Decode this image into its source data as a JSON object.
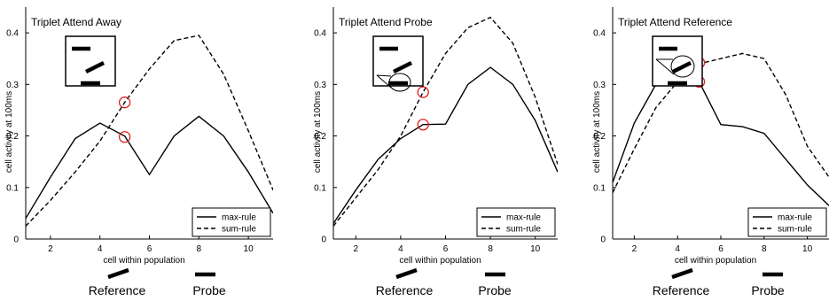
{
  "chart_data": [
    {
      "type": "line",
      "title": "Triplet Attend Away",
      "xlabel": "cell within population",
      "ylabel": "cell activity at 100ms",
      "xlim": [
        1,
        11
      ],
      "ylim": [
        0,
        0.45
      ],
      "x_ticks": [
        "2",
        "4",
        "6",
        "8",
        "10"
      ],
      "y_ticks": [
        "0",
        "0.1",
        "0.2",
        "0.3",
        "0.4"
      ],
      "legend_position": "bottom-right",
      "series": [
        {
          "name": "max-rule",
          "style": "solid",
          "x": [
            1,
            2,
            3,
            4,
            5,
            6,
            7,
            8,
            9,
            10,
            11
          ],
          "y": [
            0.04,
            0.12,
            0.195,
            0.225,
            0.2,
            0.125,
            0.2,
            0.238,
            0.2,
            0.13,
            0.05
          ]
        },
        {
          "name": "sum-rule",
          "style": "dashed",
          "x": [
            1,
            2,
            3,
            4,
            5,
            6,
            7,
            8,
            9,
            10,
            11
          ],
          "y": [
            0.025,
            0.075,
            0.13,
            0.19,
            0.265,
            0.33,
            0.385,
            0.395,
            0.32,
            0.21,
            0.095
          ]
        }
      ],
      "markers": [
        {
          "x": 5,
          "y": 0.265
        },
        {
          "x": 5,
          "y": 0.198
        }
      ],
      "inset": "away",
      "bottom_labels": {
        "reference": "Reference",
        "probe": "Probe"
      }
    },
    {
      "type": "line",
      "title": "Triplet Attend Probe",
      "xlabel": "cell within population",
      "ylabel": "cell activity at 100ms",
      "xlim": [
        1,
        11
      ],
      "ylim": [
        0,
        0.45
      ],
      "x_ticks": [
        "2",
        "4",
        "6",
        "8",
        "10"
      ],
      "y_ticks": [
        "0",
        "0.1",
        "0.2",
        "0.3",
        "0.4"
      ],
      "legend_position": "bottom-right",
      "series": [
        {
          "name": "max-rule",
          "style": "solid",
          "x": [
            1,
            2,
            3,
            4,
            5,
            6,
            7,
            8,
            9,
            10,
            11
          ],
          "y": [
            0.03,
            0.095,
            0.155,
            0.195,
            0.222,
            0.223,
            0.3,
            0.333,
            0.3,
            0.23,
            0.13
          ]
        },
        {
          "name": "sum-rule",
          "style": "dashed",
          "x": [
            1,
            2,
            3,
            4,
            5,
            6,
            7,
            8,
            9,
            10,
            11
          ],
          "y": [
            0.025,
            0.08,
            0.135,
            0.2,
            0.285,
            0.36,
            0.41,
            0.43,
            0.38,
            0.275,
            0.145
          ]
        }
      ],
      "markers": [
        {
          "x": 5,
          "y": 0.285
        },
        {
          "x": 5,
          "y": 0.222
        }
      ],
      "inset": "probe",
      "bottom_labels": {
        "reference": "Reference",
        "probe": "Probe"
      }
    },
    {
      "type": "line",
      "title": "Triplet Attend Reference",
      "xlabel": "cell within population",
      "ylabel": "cell activity at 100ms",
      "xlim": [
        1,
        11
      ],
      "ylim": [
        0,
        0.45
      ],
      "x_ticks": [
        "2",
        "4",
        "6",
        "8",
        "10"
      ],
      "y_ticks": [
        "0",
        "0.1",
        "0.2",
        "0.3",
        "0.4"
      ],
      "legend_position": "bottom-right",
      "series": [
        {
          "name": "max-rule",
          "style": "solid",
          "x": [
            1,
            2,
            3,
            4,
            5,
            6,
            7,
            8,
            9,
            10,
            11
          ],
          "y": [
            0.11,
            0.225,
            0.3,
            0.325,
            0.305,
            0.222,
            0.218,
            0.205,
            0.155,
            0.105,
            0.065
          ]
        },
        {
          "name": "sum-rule",
          "style": "dashed",
          "x": [
            1,
            2,
            3,
            4,
            5,
            6,
            7,
            8,
            9,
            10,
            11
          ],
          "y": [
            0.09,
            0.175,
            0.255,
            0.305,
            0.34,
            0.35,
            0.36,
            0.35,
            0.28,
            0.18,
            0.12
          ]
        }
      ],
      "markers": [
        {
          "x": 5,
          "y": 0.342
        },
        {
          "x": 5,
          "y": 0.305
        }
      ],
      "inset": "reference",
      "bottom_labels": {
        "reference": "Reference",
        "probe": "Probe"
      }
    }
  ],
  "colors": {
    "line": "#000000",
    "marker": "#e02020",
    "background": "#ffffff"
  }
}
